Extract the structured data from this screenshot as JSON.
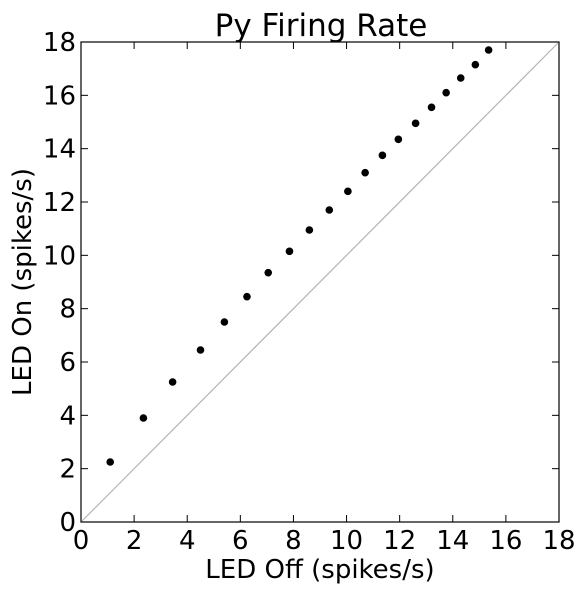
{
  "chart_data": {
    "type": "scatter",
    "title": "Py Firing Rate",
    "xlabel": "LED Off (spikes/s)",
    "ylabel": "LED On (spikes/s)",
    "xlim": [
      0,
      18
    ],
    "ylim": [
      0,
      18
    ],
    "xticks": [
      "0",
      "2",
      "4",
      "6",
      "8",
      "10",
      "12",
      "14",
      "16",
      "18"
    ],
    "yticks": [
      "0",
      "2",
      "4",
      "6",
      "8",
      "10",
      "12",
      "14",
      "16",
      "18"
    ],
    "grid": false,
    "legend": "none",
    "reference_line": {
      "type": "identity",
      "x": [
        0,
        18
      ],
      "y": [
        0,
        18
      ],
      "color": "#b3b3b3"
    },
    "series": [
      {
        "x": [
          1.1,
          2.35,
          3.45,
          4.5,
          5.4,
          6.25,
          7.05,
          7.85,
          8.6,
          9.35,
          10.05,
          10.7,
          11.35,
          11.95,
          12.6,
          13.2,
          13.75,
          14.3,
          14.85,
          15.35
        ],
        "y": [
          2.25,
          3.9,
          5.25,
          6.45,
          7.5,
          8.45,
          9.35,
          10.15,
          10.95,
          11.7,
          12.4,
          13.1,
          13.75,
          14.35,
          14.95,
          15.55,
          16.1,
          16.65,
          17.15,
          17.7
        ],
        "color": "#000000",
        "marker": "circle"
      }
    ]
  }
}
